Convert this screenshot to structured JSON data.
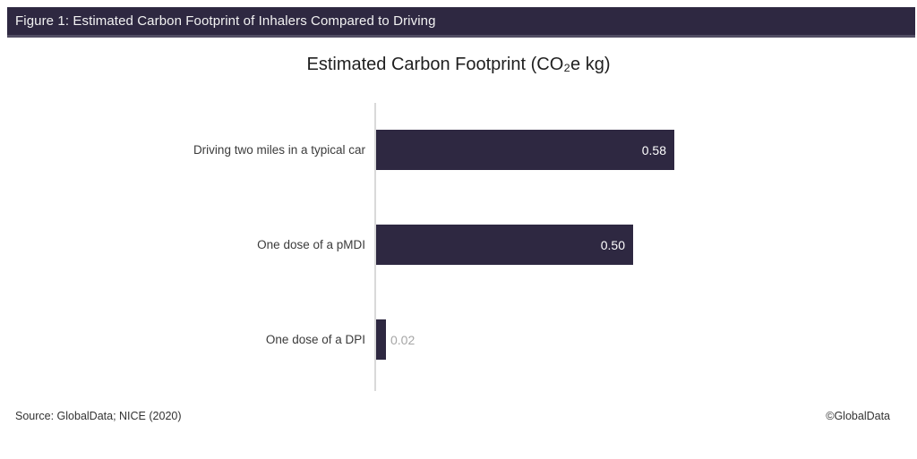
{
  "header": {
    "title": "Figure 1: Estimated Carbon Footprint of Inhalers Compared to Driving"
  },
  "chart_data": {
    "type": "bar",
    "orientation": "horizontal",
    "title": "Estimated Carbon Footprint (CO₂e kg)",
    "categories": [
      "Driving two miles in a typical car",
      "One dose of a pMDI",
      "One dose of a DPI"
    ],
    "values": [
      0.58,
      0.5,
      0.02
    ],
    "value_labels": [
      "0.58",
      "0.50",
      "0.02"
    ],
    "xlim": [
      0,
      0.62
    ],
    "grid": false,
    "legend": "none",
    "value_label_position": [
      "inside-end",
      "inside-end",
      "outside-end"
    ]
  },
  "footer": {
    "source": "Source: GlobalData; NICE (2020)",
    "copyright": "©GlobalData"
  },
  "colors": {
    "bar": "#2E2841",
    "header_bg": "#2E2841",
    "header_text": "#F2F2F2",
    "axis_line": "#D9D9D9",
    "value_inside": "#FFFFFF",
    "value_outside": "#A6A6A6"
  }
}
